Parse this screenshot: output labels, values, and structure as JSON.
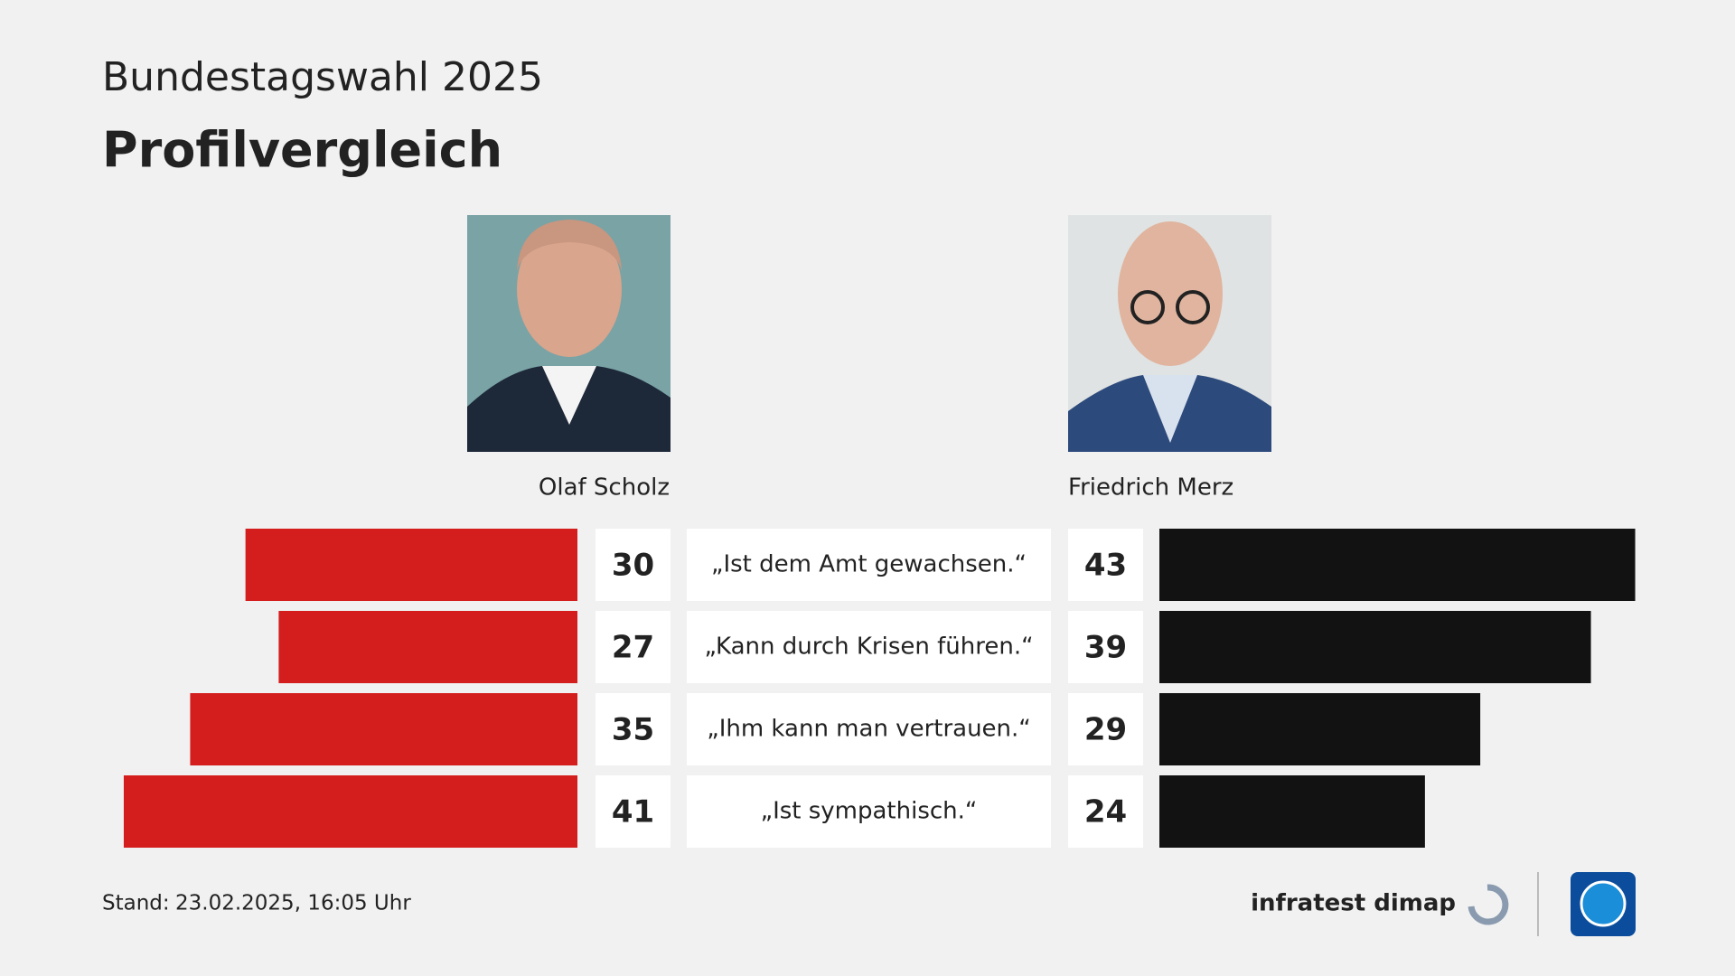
{
  "chart_data": {
    "type": "butterfly",
    "subtitle": "Bundestagswahl 2025",
    "title": "Profilvergleich",
    "categories": [
      "„Ist dem Amt gewachsen.“",
      "„Kann durch Krisen führen.“",
      "„Ihm kann man vertrauen.“",
      "„Ist sympathisch.“"
    ],
    "series": [
      {
        "name": "Olaf Scholz",
        "color": "#d41e1e",
        "values": [
          30,
          27,
          35,
          41
        ]
      },
      {
        "name": "Friedrich Merz",
        "color": "#121212",
        "values": [
          43,
          39,
          29,
          24
        ]
      }
    ]
  },
  "footer": {
    "label": "Stand:",
    "date": "23.02.2025, 16:05 Uhr",
    "source": "infratest dimap"
  }
}
